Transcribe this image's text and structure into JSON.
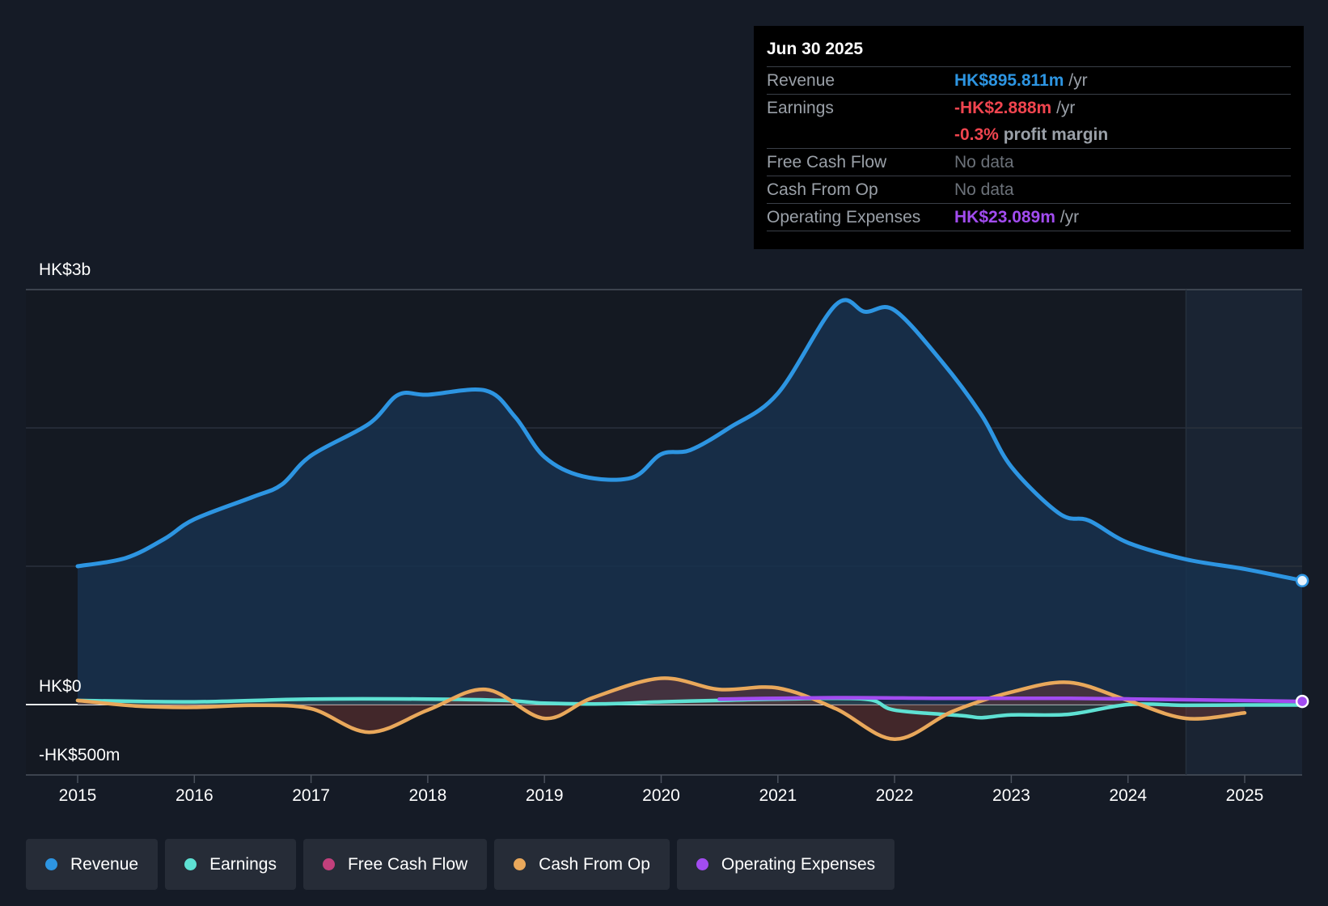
{
  "chart_data": {
    "type": "area",
    "y_unit": "HK$ m",
    "ylim": [
      -500,
      3000
    ],
    "y_ticks": [
      {
        "value": 3000,
        "label": "HK$3b"
      },
      {
        "value": 0,
        "label": "HK$0"
      },
      {
        "value": -500,
        "label": "-HK$500m"
      }
    ],
    "x_ticks": [
      "2015",
      "2016",
      "2017",
      "2018",
      "2019",
      "2020",
      "2021",
      "2022",
      "2023",
      "2024",
      "2025"
    ],
    "xlim": [
      "2015-01-01",
      "2025-06-30"
    ],
    "forecast_shade_start": "2024-07-01",
    "grid": true,
    "series": [
      {
        "name": "Revenue",
        "color": "#2d95e2",
        "points": [
          [
            "2015-01-01",
            1000
          ],
          [
            "2015-06-01",
            1060
          ],
          [
            "2015-10-01",
            1200
          ],
          [
            "2016-01-01",
            1340
          ],
          [
            "2016-07-01",
            1500
          ],
          [
            "2016-10-01",
            1590
          ],
          [
            "2017-01-01",
            1800
          ],
          [
            "2017-07-01",
            2030
          ],
          [
            "2017-10-01",
            2240
          ],
          [
            "2018-01-01",
            2240
          ],
          [
            "2018-07-01",
            2270
          ],
          [
            "2018-10-01",
            2080
          ],
          [
            "2019-01-01",
            1790
          ],
          [
            "2019-05-01",
            1650
          ],
          [
            "2019-10-01",
            1640
          ],
          [
            "2020-01-01",
            1810
          ],
          [
            "2020-04-01",
            1840
          ],
          [
            "2020-08-01",
            2000
          ],
          [
            "2021-01-01",
            2250
          ],
          [
            "2021-07-01",
            2890
          ],
          [
            "2021-10-01",
            2840
          ],
          [
            "2022-01-01",
            2850
          ],
          [
            "2022-06-01",
            2470
          ],
          [
            "2022-10-01",
            2090
          ],
          [
            "2023-01-01",
            1720
          ],
          [
            "2023-06-01",
            1380
          ],
          [
            "2023-09-01",
            1330
          ],
          [
            "2024-01-01",
            1170
          ],
          [
            "2024-07-01",
            1050
          ],
          [
            "2025-01-01",
            980
          ],
          [
            "2025-06-30",
            896
          ]
        ]
      },
      {
        "name": "Earnings",
        "color": "#5ee1d3",
        "points": [
          [
            "2015-01-01",
            30
          ],
          [
            "2016-01-01",
            20
          ],
          [
            "2017-01-01",
            40
          ],
          [
            "2018-01-01",
            40
          ],
          [
            "2018-09-01",
            30
          ],
          [
            "2019-01-01",
            10
          ],
          [
            "2019-07-01",
            5
          ],
          [
            "2020-01-01",
            20
          ],
          [
            "2020-07-01",
            30
          ],
          [
            "2021-01-01",
            40
          ],
          [
            "2021-10-01",
            40
          ],
          [
            "2022-01-01",
            -40
          ],
          [
            "2022-08-01",
            -80
          ],
          [
            "2022-10-01",
            -95
          ],
          [
            "2023-01-01",
            -75
          ],
          [
            "2023-07-01",
            -70
          ],
          [
            "2024-01-01",
            0
          ],
          [
            "2024-07-01",
            -5
          ],
          [
            "2025-01-01",
            -3
          ],
          [
            "2025-06-30",
            -3
          ]
        ]
      },
      {
        "name": "Cash From Op",
        "color": "#e9a85b",
        "points": [
          [
            "2015-01-01",
            30
          ],
          [
            "2015-07-01",
            -10
          ],
          [
            "2016-01-01",
            -20
          ],
          [
            "2016-07-01",
            -5
          ],
          [
            "2017-01-01",
            -30
          ],
          [
            "2017-07-01",
            -200
          ],
          [
            "2018-01-01",
            -40
          ],
          [
            "2018-07-01",
            110
          ],
          [
            "2019-01-01",
            -100
          ],
          [
            "2019-06-01",
            50
          ],
          [
            "2020-01-01",
            190
          ],
          [
            "2020-07-01",
            110
          ],
          [
            "2021-01-01",
            120
          ],
          [
            "2021-07-01",
            -30
          ],
          [
            "2022-01-01",
            -250
          ],
          [
            "2022-07-01",
            -50
          ],
          [
            "2023-01-01",
            90
          ],
          [
            "2023-07-01",
            160
          ],
          [
            "2024-01-01",
            30
          ],
          [
            "2024-07-01",
            -100
          ],
          [
            "2025-01-01",
            -60
          ]
        ]
      },
      {
        "name": "Operating Expenses",
        "color": "#a24cf0",
        "points": [
          [
            "2020-07-01",
            40
          ],
          [
            "2021-07-01",
            50
          ],
          [
            "2022-07-01",
            45
          ],
          [
            "2023-07-01",
            45
          ],
          [
            "2024-07-01",
            35
          ],
          [
            "2025-06-30",
            23
          ]
        ]
      }
    ]
  },
  "tooltip": {
    "date": "Jun 30 2025",
    "rows": [
      {
        "label": "Revenue",
        "value": "HK$895.811m",
        "suffix": " /yr"
      },
      {
        "label": "Earnings",
        "value": "-HK$2.888m",
        "suffix": " /yr"
      },
      {
        "label": "",
        "value": "-0.3%",
        "suffix": " profit margin"
      },
      {
        "label": "Free Cash Flow",
        "value": "No data",
        "suffix": ""
      },
      {
        "label": "Cash From Op",
        "value": "No data",
        "suffix": ""
      },
      {
        "label": "Operating Expenses",
        "value": "HK$23.089m",
        "suffix": " /yr"
      }
    ]
  },
  "legend": [
    {
      "label": "Revenue",
      "color": "#2d95e2"
    },
    {
      "label": "Earnings",
      "color": "#5ee1d3"
    },
    {
      "label": "Free Cash Flow",
      "color": "#c2407c"
    },
    {
      "label": "Cash From Op",
      "color": "#e9a85b"
    },
    {
      "label": "Operating Expenses",
      "color": "#a24cf0"
    }
  ]
}
